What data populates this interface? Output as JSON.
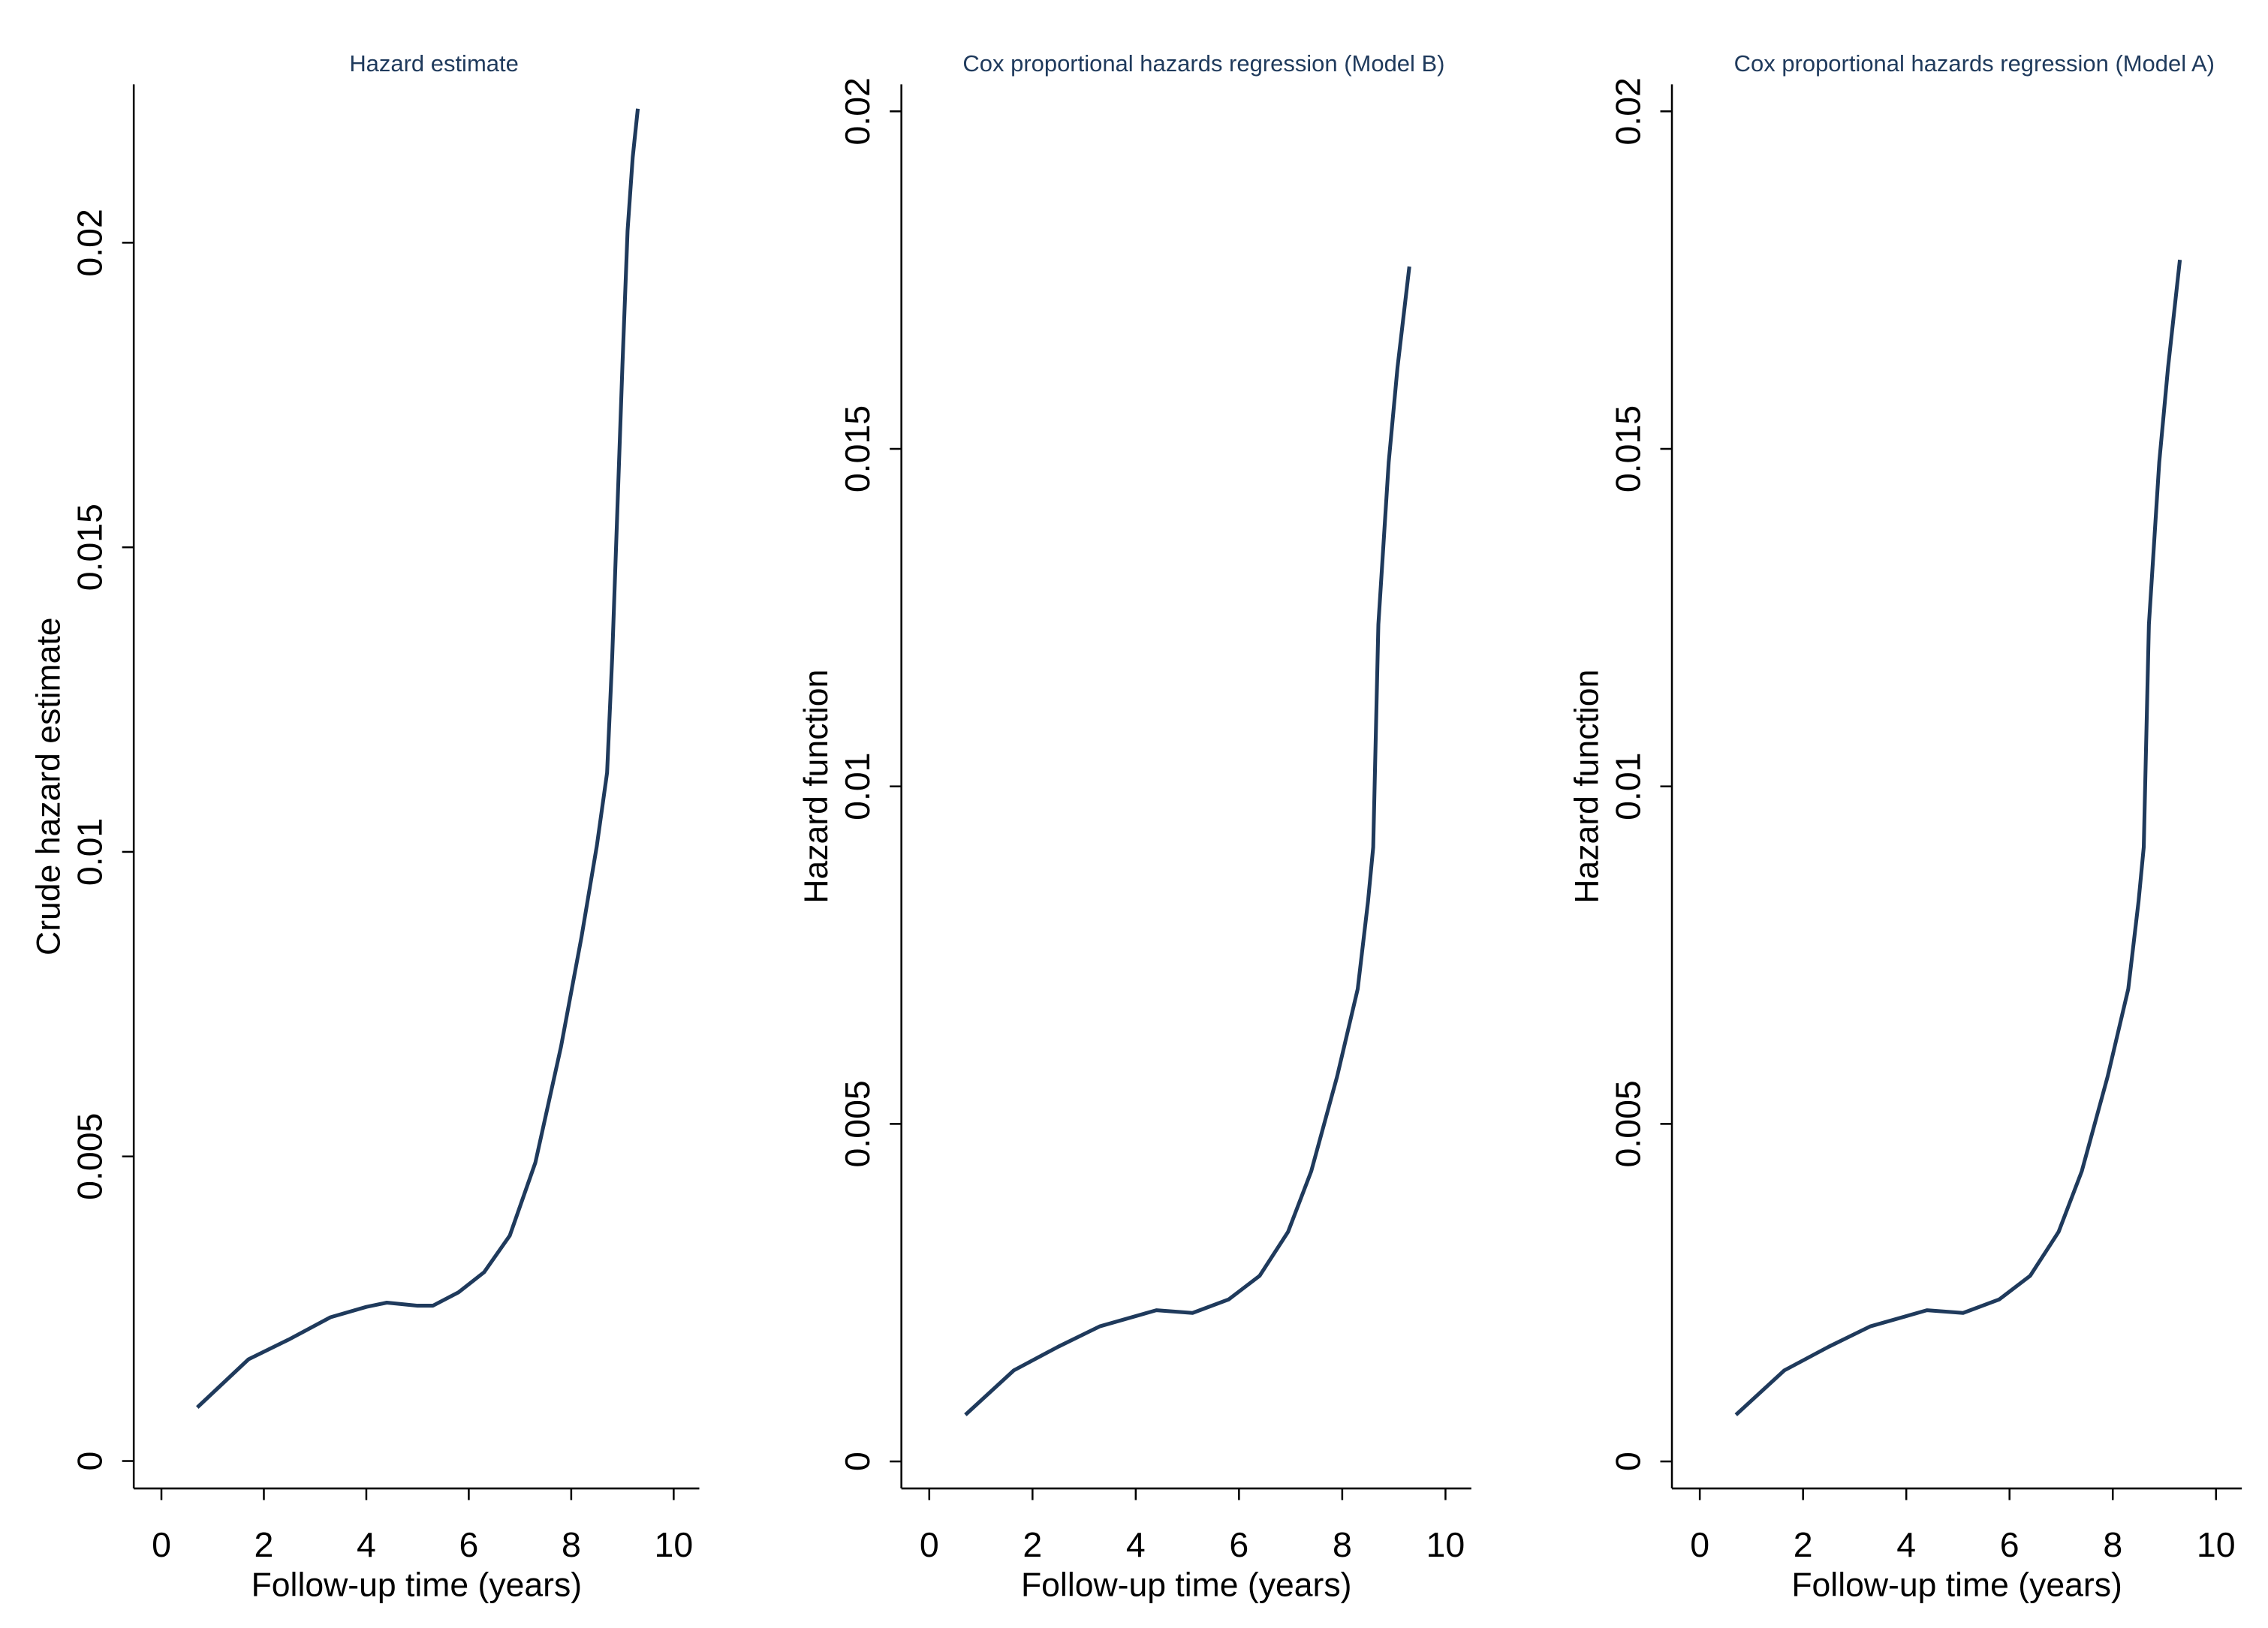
{
  "chart_data": [
    {
      "type": "line",
      "title": "Hazard estimate",
      "x_label": "Follow-up time (years)",
      "y_label": "Crude hazard estimate",
      "color": "#1f3a5c",
      "x": [
        0.7,
        1.7,
        2.5,
        3.3,
        4.0,
        4.4,
        5.0,
        5.3,
        5.8,
        6.3,
        6.8,
        7.3,
        7.8,
        8.2,
        8.5,
        8.7,
        8.8,
        8.9,
        9.0,
        9.1,
        9.2,
        9.3
      ],
      "values": [
        0.00088,
        0.00167,
        0.002,
        0.00236,
        0.00253,
        0.0026,
        0.00255,
        0.00255,
        0.00277,
        0.0031,
        0.0037,
        0.0049,
        0.0068,
        0.0086,
        0.0101,
        0.0113,
        0.0132,
        0.0156,
        0.018,
        0.0202,
        0.0214,
        0.0222
      ],
      "xlim": [
        -0.54,
        10.5
      ],
      "ylim": [
        -0.00045,
        0.0226
      ],
      "xticks": [
        0,
        2,
        4,
        6,
        8,
        10
      ],
      "yticks": [
        0,
        0.005,
        0.01,
        0.015,
        0.02
      ]
    },
    {
      "type": "line",
      "title": "Cox proportional hazards regression (Model B)",
      "x_label": "Follow-up time (years)",
      "y_label": "Hazard function",
      "color": "#1f3a5c",
      "x": [
        0.7,
        1.64,
        2.5,
        3.3,
        4.4,
        5.1,
        5.8,
        6.4,
        6.95,
        7.4,
        7.9,
        8.3,
        8.5,
        8.6,
        8.7,
        8.9,
        9.07,
        9.3
      ],
      "values": [
        0.00069,
        0.00135,
        0.0017,
        0.002,
        0.00224,
        0.0022,
        0.0024,
        0.00275,
        0.0034,
        0.0043,
        0.0057,
        0.007,
        0.0083,
        0.0091,
        0.0124,
        0.0148,
        0.0162,
        0.0177
      ],
      "xlim": [
        -0.54,
        10.5
      ],
      "ylim": [
        -0.0004,
        0.0204
      ],
      "xticks": [
        0,
        2,
        4,
        6,
        8,
        10
      ],
      "yticks": [
        0,
        0.005,
        0.01,
        0.015,
        0.02
      ]
    },
    {
      "type": "line",
      "title": "Cox proportional hazards regression (Model A)",
      "x_label": "Follow-up time (years)",
      "y_label": "Hazard function",
      "color": "#1f3a5c",
      "x": [
        0.7,
        1.64,
        2.5,
        3.3,
        4.4,
        5.1,
        5.8,
        6.4,
        6.95,
        7.4,
        7.9,
        8.3,
        8.5,
        8.6,
        8.7,
        8.9,
        9.07,
        9.3
      ],
      "values": [
        0.00069,
        0.00135,
        0.0017,
        0.002,
        0.00224,
        0.0022,
        0.0024,
        0.00275,
        0.0034,
        0.0043,
        0.0057,
        0.007,
        0.0083,
        0.0091,
        0.0124,
        0.0148,
        0.0162,
        0.0178
      ],
      "xlim": [
        -0.54,
        10.5
      ],
      "ylim": [
        -0.0004,
        0.0204
      ],
      "xticks": [
        0,
        2,
        4,
        6,
        8,
        10
      ],
      "yticks": [
        0,
        0.005,
        0.01,
        0.015,
        0.02
      ]
    }
  ]
}
